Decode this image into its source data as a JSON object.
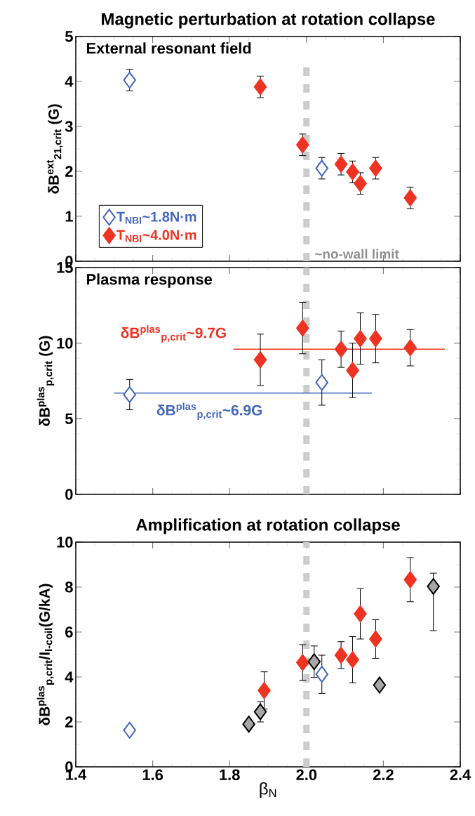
{
  "chart_data": [
    {
      "type": "scatter",
      "title": "Magnetic perturbation at rotation collapse",
      "ylabel": "δB$^{ext}$$_{21,crit}$ (G)",
      "annotations": [
        "External resonant field"
      ],
      "xlim": [
        1.4,
        2.4
      ],
      "xticks": [
        1.4,
        1.6,
        1.8,
        2,
        2.2,
        2.4
      ],
      "ylim": [
        0,
        5
      ],
      "yticks": [
        0,
        1,
        2,
        3,
        4,
        5
      ],
      "tick_labels": "y",
      "marker": "diamond",
      "legend": "bottom left",
      "ref_lines": [
        {
          "axis": "x",
          "value": 2.0,
          "label": "~no-wall limit",
          "color": "#cccccc",
          "line_style": "dashed"
        }
      ],
      "series": [
        {
          "name": "T$_{NBI}$~1.8N·m",
          "color": "#4466bb",
          "x": [
            1.54,
            2.04
          ],
          "values": [
            4.03,
            2.07
          ],
          "errors": [
            0.24,
            0.24
          ]
        },
        {
          "name": "T$_{NBI}$~4.0N·m",
          "color": "#ee3322",
          "x": [
            1.88,
            1.99,
            2.09,
            2.12,
            2.14,
            2.18,
            2.27
          ],
          "values": [
            3.88,
            2.59,
            2.16,
            1.99,
            1.73,
            2.07,
            1.41
          ],
          "errors": [
            0.24,
            0.24,
            0.24,
            0.24,
            0.24,
            0.24,
            0.24
          ]
        }
      ]
    },
    {
      "type": "scatter",
      "ylabel": "δB$^{plas}$$_{p,crit}$ (G)",
      "annotations": [
        "Plasma response"
      ],
      "xlim": [
        1.4,
        2.4
      ],
      "xticks": [
        1.4,
        1.6,
        1.8,
        2,
        2.2,
        2.4
      ],
      "ylim": [
        0,
        15
      ],
      "yticks": [
        0,
        5,
        10,
        15
      ],
      "tick_labels": "y",
      "marker": "diamond",
      "ref_lines": [
        {
          "axis": "x",
          "value": 2.0,
          "color": "#cccccc",
          "line_style": "dashed"
        }
      ],
      "series": [
        {
          "color": "#4466bb",
          "x": [
            1.54,
            2.04
          ],
          "values": [
            6.6,
            7.4
          ],
          "errors": [
            1.0,
            1.5
          ]
        },
        {
          "color": "#ee3322",
          "x": [
            1.88,
            1.99,
            2.09,
            2.12,
            2.14,
            2.18,
            2.27
          ],
          "values": [
            8.9,
            11.0,
            9.6,
            8.2,
            10.3,
            10.3,
            9.7
          ],
          "errors": [
            1.7,
            1.7,
            1.2,
            1.8,
            1.7,
            1.6,
            1.2
          ]
        },
        {
          "type": "line",
          "marker": "none",
          "name": "δB$^{plas}$$_{p,crit}$~9.7G",
          "color": "#ee3322",
          "x": [
            1.81,
            2.36
          ],
          "values": [
            9.6,
            9.6
          ]
        },
        {
          "type": "line",
          "marker": "none",
          "name": "δB$^{plas}$$_{p,crit}$~6.9G",
          "color": "#4466bb",
          "x": [
            1.5,
            2.17
          ],
          "values": [
            6.7,
            6.7
          ]
        }
      ]
    },
    {
      "type": "scatter",
      "title": "Amplification at rotation collapse",
      "xlabel": "β$_{N}$",
      "ylabel": "δB$^{plas}$$_{p,crit}$/I$_{I-coil}$(G/kA)",
      "xlim": [
        1.4,
        2.4
      ],
      "xticks": [
        1.4,
        1.6,
        1.8,
        {
          "value": 2.0,
          "label": "2.0"
        },
        2.2,
        2.4
      ],
      "ylim": [
        0,
        10
      ],
      "yticks": [
        0,
        2,
        4,
        6,
        8,
        10
      ],
      "marker": "diamond",
      "ref_lines": [
        {
          "axis": "x",
          "value": 2.0,
          "color": "#cccccc",
          "line_style": "dashed"
        }
      ],
      "series": [
        {
          "color": "#4466bb",
          "x": [
            1.54,
            2.04
          ],
          "values": [
            1.63,
            4.12
          ],
          "errors": [
            null,
            0.85
          ]
        },
        {
          "color": "#ee3322",
          "x": [
            1.89,
            1.99,
            2.09,
            2.12,
            2.14,
            2.18,
            2.27
          ],
          "values": [
            3.4,
            4.64,
            4.97,
            4.77,
            6.81,
            5.69,
            8.33
          ],
          "errors": [
            0.83,
            0.8,
            0.6,
            1.03,
            1.12,
            0.86,
            0.98
          ]
        },
        {
          "color": "#a6a6a6",
          "x": [
            1.85,
            1.88,
            2.02,
            2.19,
            2.33
          ],
          "values": [
            1.9,
            2.45,
            4.68,
            3.64,
            8.03
          ],
          "errors": [
            null,
            0.45,
            0.7,
            null,
            [
              6.06,
              8.62
            ]
          ]
        }
      ]
    }
  ]
}
